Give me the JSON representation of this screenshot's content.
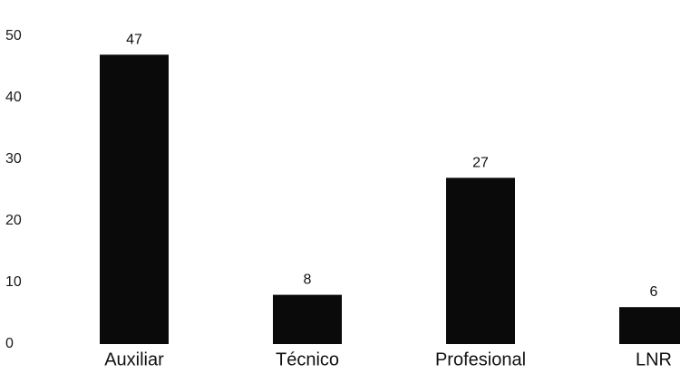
{
  "chart_data": {
    "type": "bar",
    "categories": [
      "Auxiliar",
      "Técnico",
      "Profesional",
      "LNR"
    ],
    "values": [
      47,
      8,
      27,
      6
    ],
    "data_labels": [
      "47",
      "8",
      "27",
      "6"
    ],
    "ylim": [
      0,
      50
    ],
    "yticks": [
      "0",
      "10",
      "20",
      "30",
      "40",
      "50"
    ],
    "grid": false,
    "legend": "none",
    "bar_color": "#0a0a0a"
  }
}
